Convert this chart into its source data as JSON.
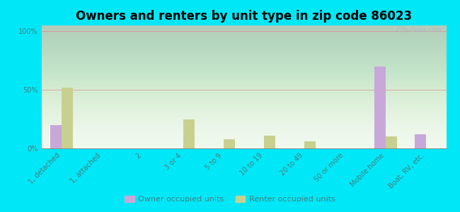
{
  "title": "Owners and renters by unit type in zip code 86023",
  "categories": [
    "1, detached",
    "1, attached",
    "2",
    "3 or 4",
    "5 to 9",
    "10 to 19",
    "20 to 49",
    "50 or more",
    "Mobile home",
    "Boat, RV, etc."
  ],
  "owner_values": [
    20,
    0,
    0,
    0,
    0,
    0,
    0,
    0,
    70,
    12
  ],
  "renter_values": [
    52,
    0,
    0,
    25,
    8,
    11,
    6,
    0,
    10,
    0
  ],
  "owner_color": "#c8a8d8",
  "renter_color": "#c8d090",
  "bg_outer": "#00e8f8",
  "plot_bg_color": "#eef5e8",
  "ylabel_ticks": [
    "0%",
    "50%",
    "100%"
  ],
  "ytick_vals": [
    0,
    50,
    100
  ],
  "ylim": [
    0,
    105
  ],
  "watermark": "City-Data.com",
  "legend_owner": "Owner occupied units",
  "legend_renter": "Renter occupied units",
  "bar_width": 0.28,
  "title_fontsize": 12,
  "tick_fontsize": 7,
  "grid_color": "#e08080",
  "axis_color": "#888888",
  "label_color": "#408080"
}
